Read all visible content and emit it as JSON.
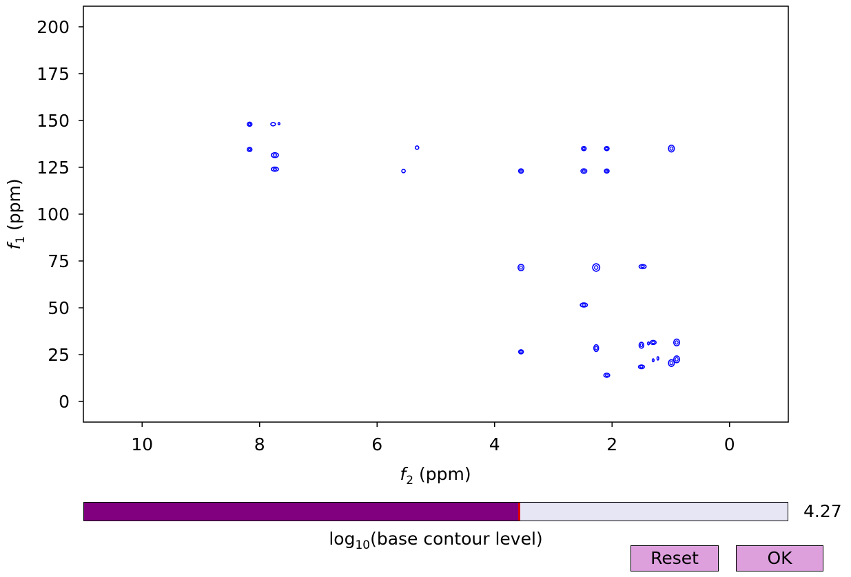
{
  "chart_data": {
    "type": "contour",
    "xlabel_var": "f",
    "xlabel_sub": "2",
    "xlabel_unit": "(ppm)",
    "ylabel_var": "f",
    "ylabel_sub": "1",
    "ylabel_unit": "(ppm)",
    "xlim": [
      11,
      -1
    ],
    "ylim": [
      211,
      -11
    ],
    "xticks": [
      10,
      8,
      6,
      4,
      2,
      0
    ],
    "yticks": [
      0,
      25,
      50,
      75,
      100,
      125,
      150,
      175,
      200
    ],
    "contour_color": "#0000ff",
    "peaks": [
      {
        "x": 2.09,
        "y": 14,
        "w": 0.05,
        "h": 1.1
      },
      {
        "x": 1.5,
        "y": 18.5,
        "w": 0.05,
        "h": 1.0
      },
      {
        "x": 1.3,
        "y": 22,
        "w": 0.015,
        "h": 0.8
      },
      {
        "x": 1.22,
        "y": 23,
        "w": 0.015,
        "h": 0.9
      },
      {
        "x": 0.99,
        "y": 20.5,
        "w": 0.05,
        "h": 1.8
      },
      {
        "x": 0.9,
        "y": 22.5,
        "w": 0.05,
        "h": 1.8
      },
      {
        "x": 3.55,
        "y": 26.5,
        "w": 0.04,
        "h": 1.1
      },
      {
        "x": 2.27,
        "y": 28.5,
        "w": 0.04,
        "h": 1.8
      },
      {
        "x": 1.5,
        "y": 30,
        "w": 0.04,
        "h": 1.6
      },
      {
        "x": 1.38,
        "y": 31,
        "w": 0.015,
        "h": 0.8
      },
      {
        "x": 1.3,
        "y": 31.5,
        "w": 0.05,
        "h": 1.1
      },
      {
        "x": 0.9,
        "y": 31.5,
        "w": 0.05,
        "h": 1.8
      },
      {
        "x": 2.48,
        "y": 51.5,
        "w": 0.06,
        "h": 1.1
      },
      {
        "x": 3.55,
        "y": 71.5,
        "w": 0.05,
        "h": 1.7
      },
      {
        "x": 2.27,
        "y": 71.5,
        "w": 0.06,
        "h": 2.0
      },
      {
        "x": 1.48,
        "y": 72,
        "w": 0.06,
        "h": 1.1
      },
      {
        "x": 7.74,
        "y": 124,
        "w": 0.06,
        "h": 1.1
      },
      {
        "x": 7.74,
        "y": 131.5,
        "w": 0.06,
        "h": 1.3
      },
      {
        "x": 8.17,
        "y": 134.5,
        "w": 0.04,
        "h": 1.1
      },
      {
        "x": 8.17,
        "y": 148,
        "w": 0.04,
        "h": 1.1
      },
      {
        "x": 7.77,
        "y": 148,
        "w": 0.04,
        "h": 0.9
      },
      {
        "x": 7.67,
        "y": 148.3,
        "w": 0.015,
        "h": 0.6
      },
      {
        "x": 5.55,
        "y": 123,
        "w": 0.03,
        "h": 0.9
      },
      {
        "x": 5.32,
        "y": 135.5,
        "w": 0.03,
        "h": 0.9
      },
      {
        "x": 3.55,
        "y": 123,
        "w": 0.04,
        "h": 1.2
      },
      {
        "x": 2.48,
        "y": 123,
        "w": 0.05,
        "h": 1.2
      },
      {
        "x": 2.09,
        "y": 123,
        "w": 0.04,
        "h": 1.1
      },
      {
        "x": 2.48,
        "y": 135,
        "w": 0.04,
        "h": 1.1
      },
      {
        "x": 2.09,
        "y": 135,
        "w": 0.04,
        "h": 1.1
      },
      {
        "x": 0.99,
        "y": 135,
        "w": 0.05,
        "h": 1.8
      }
    ]
  },
  "slider": {
    "label_prefix": "log",
    "label_sub": "10",
    "label_rest": "(base contour level)",
    "value_text": "4.27",
    "fill_fraction": 0.619,
    "fill_color": "#800080",
    "track_color": "#e6e6f5",
    "marker_color": "#e00000"
  },
  "buttons": {
    "reset_label": "Reset",
    "ok_label": "OK",
    "color": "#dda0dd"
  }
}
